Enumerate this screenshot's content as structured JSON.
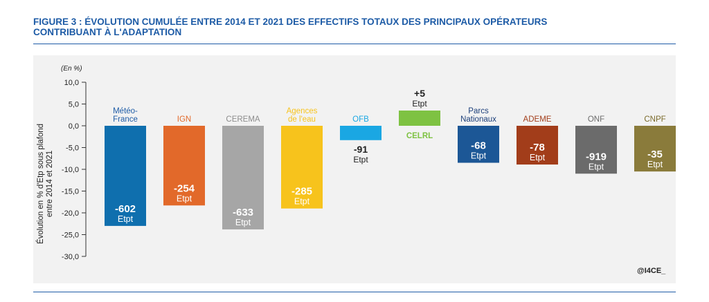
{
  "title_line1": "FIGURE 3 : ÉVOLUTION CUMULÉE ENTRE 2014 ET 2021 DES EFFECTIFS TOTAUX DES PRINCIPAUX OPÉRATEURS",
  "title_line2": "CONTRIBUANT À L'ADAPTATION",
  "credit": "@I4CE_",
  "chart_data": {
    "type": "bar",
    "unit_label": "(En %)",
    "ylabel_line1": "Évolution en % d'Etp sous plafond",
    "ylabel_line2": "entre 2014 et 2021",
    "ylim": [
      -30,
      10
    ],
    "yticks": [
      "10,0",
      "5,0",
      "0,0",
      "-5,0",
      "-10,0",
      "-15,0",
      "-20,0",
      "-25,0",
      "-30,0"
    ],
    "ytick_values": [
      10,
      5,
      0,
      -5,
      -10,
      -15,
      -20,
      -25,
      -30
    ],
    "grid": false,
    "categories": [
      {
        "name_lines": [
          "Météo-",
          "France"
        ],
        "value": -23.0,
        "count": "-602",
        "unit": "Etpt",
        "color": "#0f6fae",
        "name_color": "#1d5ba6",
        "inside": true
      },
      {
        "name_lines": [
          "IGN"
        ],
        "value": -18.3,
        "count": "-254",
        "unit": "Etpt",
        "color": "#e2692a",
        "name_color": "#e2692a",
        "inside": true
      },
      {
        "name_lines": [
          "CEREMA"
        ],
        "value": -23.8,
        "count": "-633",
        "unit": "Etpt",
        "color": "#a6a6a6",
        "name_color": "#8c8c8c",
        "inside": true
      },
      {
        "name_lines": [
          "Agences",
          "de l'eau"
        ],
        "value": -19.0,
        "count": "-285",
        "unit": "Etpt",
        "color": "#f7c31c",
        "name_color": "#f7c31c",
        "inside": true
      },
      {
        "name_lines": [
          "OFB"
        ],
        "value": -3.3,
        "count": "-91",
        "unit": "Etpt",
        "color": "#1aa7e3",
        "name_color": "#1aa7e3",
        "inside": false
      },
      {
        "name_lines": [
          "CELRL"
        ],
        "value": 3.5,
        "count": "+5",
        "unit": "Etpt",
        "color": "#7ec242",
        "name_color": "#7ec242",
        "inside": false
      },
      {
        "name_lines": [
          "Parcs",
          "Nationaux"
        ],
        "value": -8.5,
        "count": "-68",
        "unit": "Etpt",
        "color": "#1c5796",
        "name_color": "#1c3f7a",
        "inside": true
      },
      {
        "name_lines": [
          "ADEME"
        ],
        "value": -8.9,
        "count": "-78",
        "unit": "Etpt",
        "color": "#a23d1a",
        "name_color": "#a23d1a",
        "inside": true
      },
      {
        "name_lines": [
          "ONF"
        ],
        "value": -11.0,
        "count": "-919",
        "unit": "Etpt",
        "color": "#6b6b6b",
        "name_color": "#6b6b6b",
        "inside": true
      },
      {
        "name_lines": [
          "CNPF"
        ],
        "value": -10.5,
        "count": "-35",
        "unit": "Etpt",
        "color": "#8a7b3b",
        "name_color": "#7a6a2a",
        "inside": true
      }
    ]
  }
}
